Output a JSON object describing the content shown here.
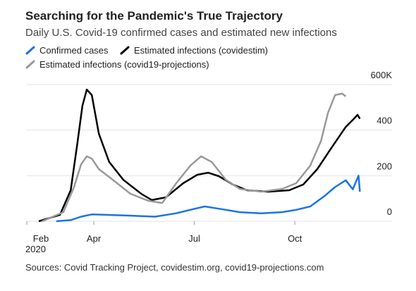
{
  "chart_data": {
    "type": "line",
    "title": "Searching for the Pandemic's True Trajectory",
    "subtitle": "Daily U.S. Covid-19 confirmed cases and estimated new infections",
    "source": "Sources: Covid Tracking Project, covidestim.org, covid19-projections.com",
    "x_year_label": "2020",
    "xlim": [
      2.0,
      12.9
    ],
    "xticks": [
      {
        "value": 2,
        "label": "Feb"
      },
      {
        "value": 4,
        "label": "Apr"
      },
      {
        "value": 7,
        "label": "Jul"
      },
      {
        "value": 10,
        "label": "Oct"
      }
    ],
    "ylim": [
      0,
      600
    ],
    "yticks": [
      0,
      200,
      400,
      {
        "value": 600,
        "label": "600K"
      }
    ],
    "grid": true,
    "series": [
      {
        "name": "Confirmed cases",
        "color": "#1a73e8",
        "x": [
          2.88,
          3.31,
          3.62,
          3.94,
          4.36,
          4.99,
          5.83,
          6.46,
          6.88,
          7.31,
          7.73,
          8.36,
          8.99,
          9.62,
          10.04,
          10.46,
          10.88,
          11.2,
          11.52,
          11.73,
          11.9,
          11.94
        ],
        "values": [
          0,
          5,
          20,
          30,
          28,
          25,
          20,
          35,
          50,
          65,
          55,
          40,
          35,
          40,
          50,
          65,
          110,
          150,
          180,
          140,
          200,
          130
        ]
      },
      {
        "name": "Estimated infections (covidestim)",
        "color": "#000000",
        "x": [
          2.36,
          2.99,
          3.31,
          3.52,
          3.66,
          3.79,
          3.94,
          4.15,
          4.46,
          4.88,
          5.41,
          5.73,
          6.15,
          6.67,
          7.09,
          7.41,
          7.73,
          8.15,
          8.57,
          9.2,
          9.83,
          10.25,
          10.67,
          11.09,
          11.52,
          11.73,
          11.87,
          11.94
        ],
        "values": [
          0,
          28,
          136,
          353,
          507,
          578,
          554,
          384,
          260,
          182,
          121,
          93,
          105,
          167,
          204,
          213,
          198,
          161,
          136,
          130,
          136,
          161,
          229,
          322,
          414,
          445,
          467,
          450
        ]
      },
      {
        "name": "Estimated infections (covid19-projections)",
        "color": "#999999",
        "x": [
          2.46,
          3.09,
          3.41,
          3.62,
          3.79,
          3.94,
          4.15,
          4.57,
          5.09,
          5.62,
          6.04,
          6.46,
          6.88,
          7.2,
          7.52,
          7.94,
          8.36,
          8.99,
          9.62,
          10.04,
          10.46,
          10.78,
          10.99,
          11.2,
          11.41,
          11.52
        ],
        "values": [
          0,
          40,
          150,
          250,
          285,
          275,
          229,
          182,
          121,
          90,
          80,
          167,
          244,
          285,
          260,
          182,
          142,
          130,
          142,
          167,
          244,
          353,
          476,
          554,
          560,
          548
        ]
      }
    ]
  }
}
